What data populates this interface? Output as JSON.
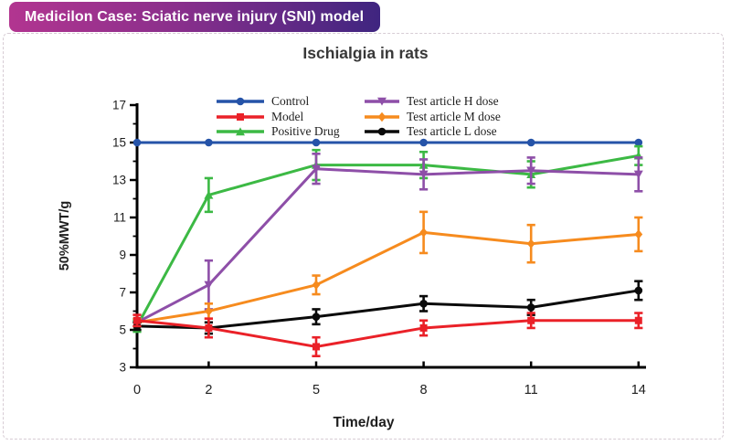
{
  "badge": {
    "label": "Medicilon Case: Sciatic nerve injury (SNI) model",
    "gradient_from": "#b23590",
    "gradient_to": "#3f2580"
  },
  "chart_data": {
    "type": "line",
    "title": "Ischialgia in rats",
    "xlabel": "Time/day",
    "ylabel": "50%MWT/g",
    "x": [
      0,
      2,
      5,
      8,
      11,
      14
    ],
    "xticks": [
      0,
      2,
      5,
      8,
      11,
      14
    ],
    "xlim": [
      0,
      14.2
    ],
    "ylim": [
      3,
      17
    ],
    "yticks_major": [
      3,
      5,
      7,
      9,
      11,
      13,
      15,
      17
    ],
    "yticks_minor": [
      4,
      6,
      8,
      10,
      12,
      14,
      16
    ],
    "grid": false,
    "legend_position": "top inside plot, two columns",
    "error_bars": true,
    "series": [
      {
        "name": "Control",
        "color": "#2553a8",
        "marker": "circle",
        "values": [
          15,
          15,
          15,
          15,
          15,
          15
        ],
        "errors": [
          0,
          0,
          0,
          0,
          0,
          0
        ]
      },
      {
        "name": "Model",
        "color": "#ea2128",
        "marker": "square",
        "values": [
          5.5,
          5.1,
          4.1,
          5.1,
          5.5,
          5.5
        ],
        "errors": [
          0.3,
          0.5,
          0.5,
          0.4,
          0.4,
          0.4
        ]
      },
      {
        "name": "Positive Drug",
        "color": "#3cb944",
        "marker": "triangle-up",
        "values": [
          5.2,
          12.2,
          13.8,
          13.8,
          13.3,
          14.3
        ],
        "errors": [
          0.3,
          0.9,
          0.8,
          0.7,
          0.7,
          0.5
        ]
      },
      {
        "name": "Test article H dose",
        "color": "#8e4fa8",
        "marker": "triangle-down",
        "values": [
          5.4,
          7.4,
          13.6,
          13.3,
          13.5,
          13.3
        ],
        "errors": [
          0.2,
          1.3,
          0.8,
          0.8,
          0.7,
          0.9
        ]
      },
      {
        "name": "Test article M dose",
        "color": "#f68b1e",
        "marker": "diamond",
        "values": [
          5.4,
          6.0,
          7.4,
          10.2,
          9.6,
          10.1
        ],
        "errors": [
          0.2,
          0.4,
          0.5,
          1.1,
          1.0,
          0.9
        ]
      },
      {
        "name": "Test article L dose",
        "color": "#0a0a0a",
        "marker": "circle",
        "values": [
          5.2,
          5.1,
          5.7,
          6.4,
          6.2,
          7.1
        ],
        "errors": [
          0.2,
          0.3,
          0.4,
          0.4,
          0.4,
          0.5
        ]
      }
    ]
  }
}
